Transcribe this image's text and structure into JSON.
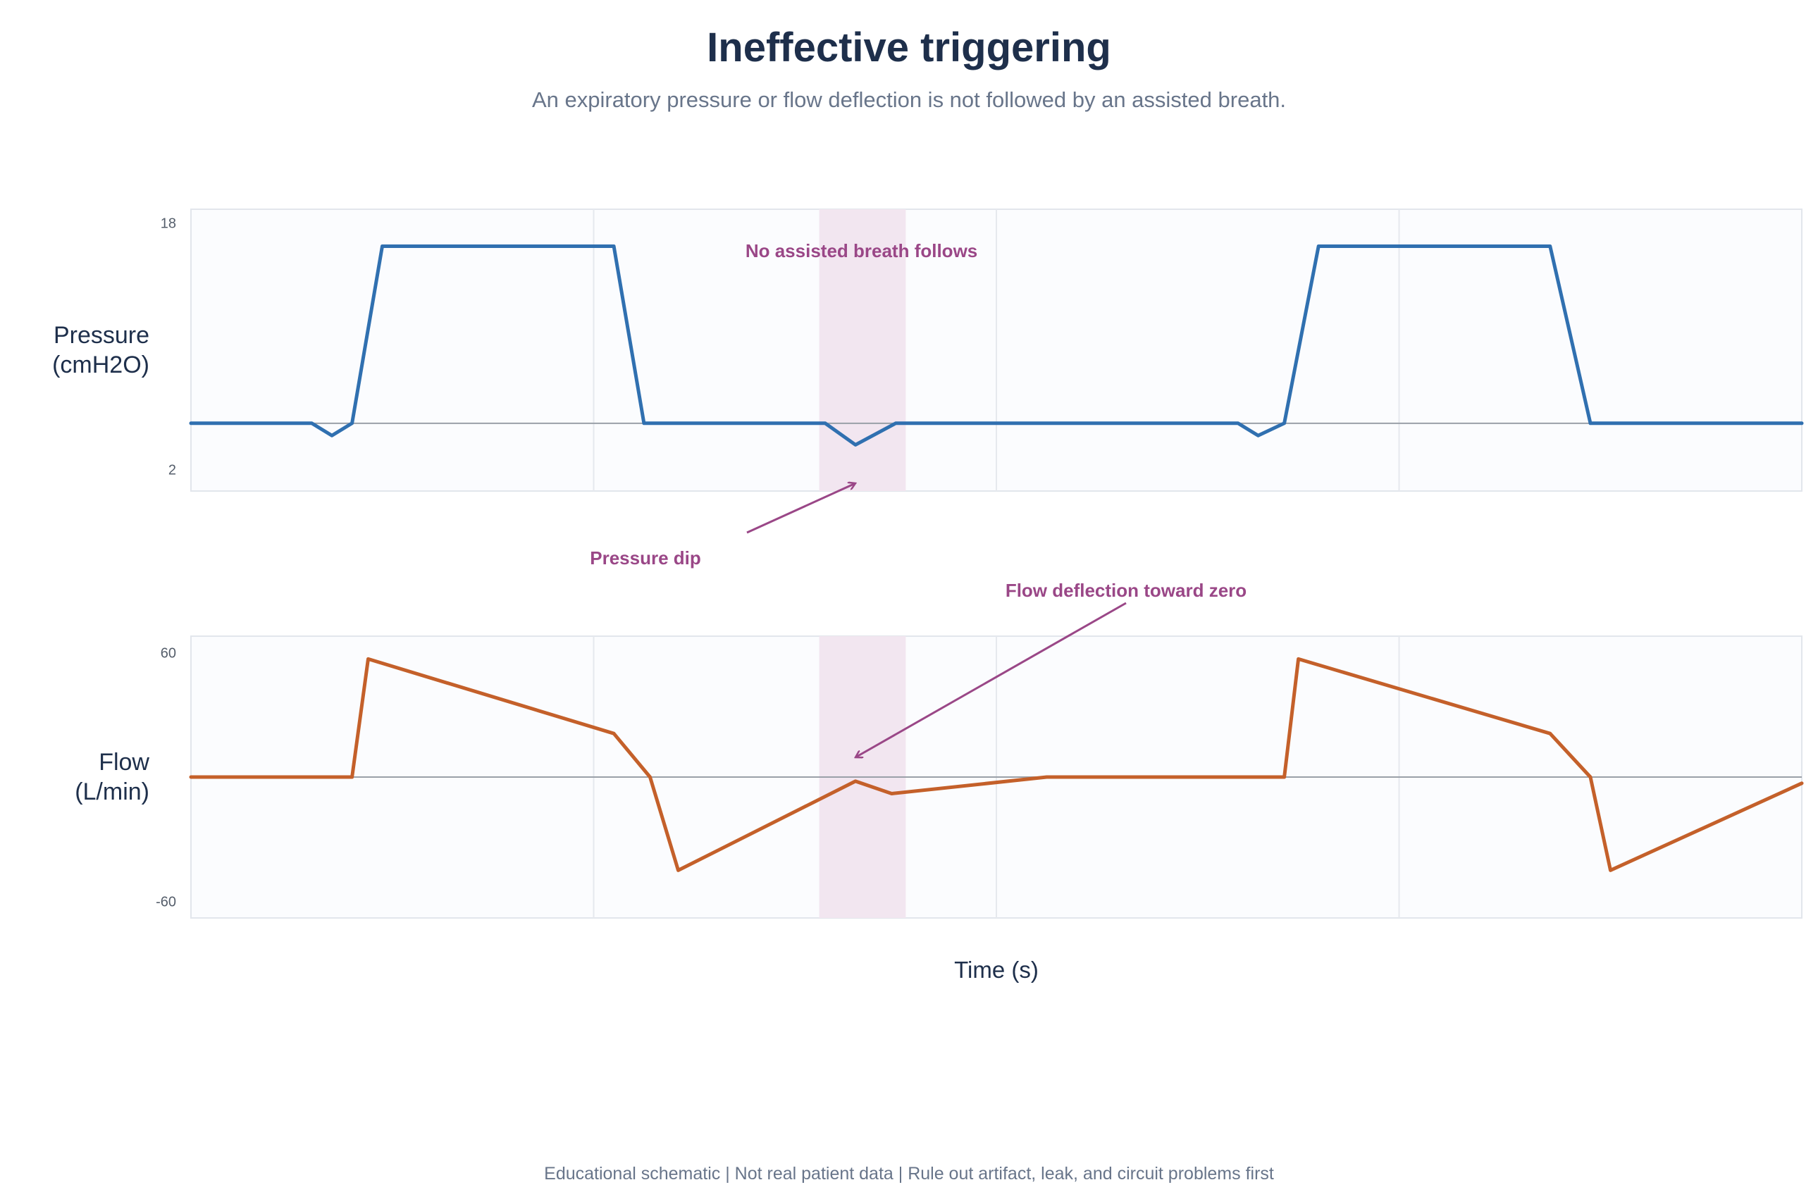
{
  "title": "Ineffective triggering",
  "subtitle": "An expiratory pressure or flow deflection is not followed by an assisted breath.",
  "footer": "Educational schematic | Not real patient data | Rule out artifact, leak, and circuit problems first",
  "chart_data": [
    {
      "type": "line",
      "ylabel_lines": [
        "Pressure",
        "(cmH2O)"
      ],
      "xlabel": "",
      "y_ticks": [
        2,
        18
      ],
      "ylim": [
        0.6,
        18.9
      ],
      "xlim": [
        0,
        8
      ],
      "baseline": 5,
      "color": "#3070b0",
      "grid": true,
      "x": [
        0,
        0.6,
        0.7,
        0.8,
        0.95,
        2.1,
        2.25,
        3.15,
        3.3,
        3.5,
        5.2,
        5.3,
        5.43,
        5.6,
        6.75,
        6.95,
        8
      ],
      "values": [
        5,
        5,
        4.2,
        5,
        16.5,
        16.5,
        5,
        5,
        3.6,
        5,
        5,
        4.2,
        5,
        16.5,
        16.5,
        5,
        5
      ],
      "highlight": [
        3.12,
        3.55
      ],
      "annotations": [
        {
          "text": "No assisted breath follows",
          "x": 3.33,
          "y": 15.8,
          "color": "#9a4787"
        }
      ]
    },
    {
      "type": "line",
      "ylabel_lines": [
        "Flow",
        "(L/min)"
      ],
      "xlabel": "Time (s)",
      "y_ticks": [
        60,
        -60
      ],
      "ylim": [
        -68,
        68
      ],
      "xlim": [
        0,
        8
      ],
      "baseline": 0,
      "color": "#c4602a",
      "grid": true,
      "x": [
        0,
        0.8,
        0.88,
        2.1,
        2.28,
        2.42,
        3.3,
        3.48,
        4.25,
        5.43,
        5.5,
        6.75,
        6.95,
        7.05,
        8
      ],
      "values": [
        0,
        0,
        57,
        21,
        0,
        -45,
        -2,
        -8,
        0,
        0,
        57,
        21,
        0,
        -45,
        -3
      ],
      "highlight": [
        3.12,
        3.55
      ],
      "annotations": []
    }
  ],
  "callouts": [
    {
      "text": "Pressure dip",
      "color": "#9a4787"
    },
    {
      "text": "Flow deflection toward zero",
      "color": "#9a4787"
    }
  ]
}
